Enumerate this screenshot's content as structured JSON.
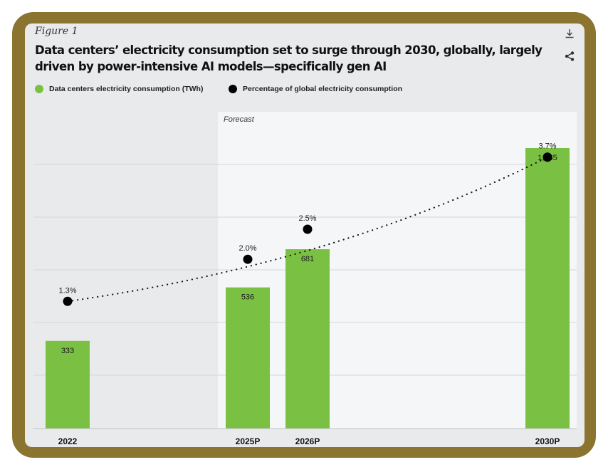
{
  "figure_label": "Figure 1",
  "title": "Data centers’ electricity consumption set to surge through 2030, globally, largely driven by power-intensive AI models—specifically gen AI",
  "icons": {
    "download": "download-icon",
    "share": "share-icon"
  },
  "colors": {
    "bar": "#7ac143",
    "dot": "#000000",
    "forecast_bg": "#f5f6f8",
    "historical_bg": "#e9eaec",
    "frame": "#8a7430"
  },
  "chart_data": {
    "type": "bar",
    "forecast_label": "Forecast",
    "categories": [
      "2022",
      "2025P",
      "2026P",
      "2030P"
    ],
    "series": [
      {
        "name": "Data centers electricity consumption (TWh)",
        "type": "bar",
        "values": [
          333,
          536,
          681,
          1065
        ],
        "labels": [
          "333",
          "536",
          "681",
          "1,065"
        ]
      },
      {
        "name": "Percentage of global electricity consumption",
        "type": "line",
        "values": [
          1.3,
          2.0,
          2.5,
          3.7
        ],
        "labels": [
          "1.3%",
          "2.0%",
          "2.5%",
          "3.7%"
        ]
      }
    ],
    "legend_position": "top-left",
    "grid": true
  }
}
